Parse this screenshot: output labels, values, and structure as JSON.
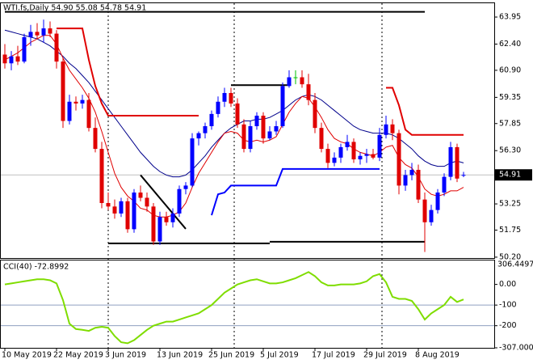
{
  "chart_data": [
    {
      "type": "candlestick",
      "title": "WTI.fs,Daily 54.90 55.08 54.78 54.91",
      "categories": [
        "10 May 2019",
        null,
        null,
        null,
        null,
        null,
        null,
        null,
        "22 May 2019",
        null,
        null,
        null,
        null,
        null,
        null,
        null,
        "3 Jun 2019",
        null,
        null,
        null,
        null,
        null,
        null,
        null,
        "13 Jun 2019",
        null,
        null,
        null,
        null,
        null,
        null,
        null,
        "25 Jun 2019",
        null,
        null,
        null,
        null,
        null,
        null,
        null,
        "5 Jul 2019",
        null,
        null,
        null,
        null,
        null,
        null,
        null,
        "17 Jul 2019",
        null,
        null,
        null,
        null,
        null,
        null,
        null,
        "29 Jul 2019",
        null,
        null,
        null,
        null,
        null,
        null,
        null,
        "8 Aug 2019",
        null,
        null,
        null,
        null,
        null,
        null,
        null
      ],
      "open": [
        61.8,
        61.3,
        61.7,
        61.4,
        62.8,
        63.1,
        62.9,
        63.3,
        63.0,
        61.4,
        58.0,
        59.1,
        59.0,
        59.2,
        57.6,
        56.4,
        53.3,
        53.1,
        52.7,
        53.4,
        51.8,
        53.9,
        53.6,
        53.1,
        51.1,
        52.5,
        52.2,
        52.7,
        54.1,
        54.3,
        57.0,
        57.3,
        57.7,
        58.4,
        59.1,
        59.6,
        59.0,
        57.8,
        56.4,
        57.7,
        58.3,
        57.0,
        57.4,
        57.7,
        60.0,
        60.5,
        60.5,
        60.1,
        59.2,
        57.6,
        56.4,
        55.6,
        55.9,
        56.5,
        56.8,
        55.8,
        56.0,
        56.1,
        55.9,
        57.2,
        57.8,
        57.3,
        54.3,
        54.9,
        55.2,
        53.5,
        52.2,
        52.9,
        53.9,
        54.8,
        56.5,
        54.9
      ],
      "high": [
        62.4,
        62.0,
        62.3,
        63.0,
        63.5,
        63.6,
        63.8,
        63.7,
        63.2,
        61.6,
        59.5,
        59.4,
        59.5,
        59.6,
        58.2,
        56.8,
        53.9,
        53.5,
        53.6,
        53.6,
        54.1,
        54.3,
        53.9,
        53.3,
        52.8,
        52.8,
        53.0,
        54.3,
        54.5,
        57.3,
        57.4,
        57.9,
        58.6,
        59.4,
        59.9,
        59.9,
        59.3,
        58.1,
        58.0,
        58.5,
        58.5,
        57.7,
        58.0,
        60.2,
        60.9,
        60.9,
        60.9,
        60.7,
        59.6,
        57.9,
        56.7,
        56.2,
        56.7,
        57.2,
        57.0,
        56.2,
        56.4,
        56.4,
        57.6,
        58.3,
        58.1,
        57.5,
        55.2,
        55.6,
        55.5,
        53.9,
        53.2,
        54.1,
        55.0,
        56.8,
        56.7,
        55.08
      ],
      "low": [
        61.0,
        60.9,
        61.2,
        61.3,
        62.3,
        62.7,
        62.5,
        62.8,
        61.0,
        57.6,
        57.8,
        58.6,
        58.7,
        57.4,
        56.2,
        53.0,
        52.9,
        52.4,
        52.5,
        51.6,
        51.6,
        53.4,
        52.8,
        50.9,
        50.9,
        52.0,
        51.9,
        52.5,
        53.8,
        54.2,
        56.6,
        57.0,
        57.5,
        58.2,
        58.8,
        58.8,
        57.6,
        56.2,
        56.2,
        57.5,
        56.7,
        56.9,
        57.2,
        57.6,
        59.9,
        60.1,
        59.9,
        58.9,
        57.3,
        56.2,
        55.3,
        55.4,
        55.6,
        56.3,
        55.6,
        55.5,
        55.6,
        55.8,
        55.7,
        57.0,
        56.9,
        53.8,
        54.0,
        54.6,
        53.3,
        50.5,
        52.0,
        52.7,
        53.7,
        54.6,
        54.5,
        54.78
      ],
      "close": [
        61.3,
        61.7,
        61.4,
        62.8,
        63.1,
        62.9,
        63.3,
        63.0,
        61.4,
        58.0,
        59.1,
        59.0,
        59.2,
        57.6,
        56.4,
        53.3,
        53.1,
        52.7,
        53.4,
        51.8,
        53.9,
        53.6,
        53.1,
        51.1,
        52.5,
        52.2,
        52.7,
        54.1,
        54.3,
        57.0,
        57.3,
        57.7,
        58.4,
        59.1,
        59.6,
        59.0,
        57.8,
        56.4,
        57.7,
        58.3,
        57.0,
        57.4,
        57.7,
        60.0,
        60.5,
        60.5,
        60.1,
        59.2,
        57.6,
        56.4,
        55.6,
        55.9,
        56.5,
        56.8,
        55.8,
        56.0,
        56.1,
        55.9,
        57.2,
        57.8,
        57.3,
        54.3,
        54.9,
        55.2,
        53.5,
        52.2,
        52.9,
        53.9,
        54.8,
        56.5,
        54.7,
        54.91
      ],
      "up_color": "#0000ff",
      "down_color": "#e00000",
      "doji_color": "#00c000",
      "lines": [
        {
          "color": "#00008b",
          "values": [
            63.2,
            63.1,
            63.0,
            62.9,
            62.8,
            62.7,
            62.5,
            62.3,
            62.0,
            61.7,
            61.3,
            61.0,
            60.6,
            60.2,
            59.7,
            59.2,
            58.7,
            58.2,
            57.7,
            57.2,
            56.7,
            56.2,
            55.8,
            55.4,
            55.1,
            54.9,
            54.8,
            54.8,
            54.9,
            55.2,
            55.6,
            56.0,
            56.5,
            56.9,
            57.3,
            57.6,
            57.8,
            58.0,
            58.0,
            58.1,
            58.1,
            58.2,
            58.4,
            58.6,
            58.9,
            59.2,
            59.4,
            59.5,
            59.4,
            59.2,
            58.9,
            58.6,
            58.3,
            58.0,
            57.7,
            57.5,
            57.4,
            57.3,
            57.3,
            57.3,
            57.2,
            57.0,
            56.7,
            56.4,
            56.0,
            55.7,
            55.5,
            55.4,
            55.4,
            55.6,
            55.7,
            55.6
          ]
        },
        {
          "color": "#e00000",
          "values": [
            61.5,
            61.7,
            61.9,
            62.2,
            62.5,
            62.7,
            62.9,
            62.9,
            62.4,
            61.6,
            60.9,
            60.4,
            59.9,
            59.3,
            58.5,
            57.4,
            56.2,
            55.0,
            54.2,
            53.7,
            53.4,
            53.0,
            52.9,
            52.6,
            52.5,
            52.5,
            52.6,
            52.8,
            53.3,
            54.2,
            55.0,
            55.6,
            56.2,
            56.8,
            57.3,
            57.4,
            57.3,
            56.9,
            56.8,
            56.9,
            56.8,
            56.9,
            57.1,
            57.8,
            58.5,
            59.0,
            59.4,
            59.3,
            58.8,
            58.2,
            57.5,
            57.0,
            56.8,
            56.7,
            56.4,
            56.2,
            56.1,
            56.0,
            56.2,
            56.5,
            56.6,
            55.9,
            55.5,
            55.3,
            54.8,
            54.1,
            53.8,
            53.7,
            53.8,
            54.0,
            54.0,
            54.2
          ]
        },
        {
          "color": "#e00000",
          "width": 2,
          "values": [
            null,
            null,
            null,
            null,
            null,
            null,
            null,
            null,
            63.3,
            63.3,
            63.3,
            63.3,
            63.3,
            61.5,
            60.0,
            59.0,
            58.3,
            58.3,
            58.3,
            58.3,
            58.3,
            58.3,
            58.3,
            58.3,
            58.3,
            58.3,
            58.3,
            58.3,
            58.3,
            58.3,
            58.3,
            null,
            null,
            null,
            null,
            null,
            null,
            null,
            null,
            null,
            null,
            null,
            null,
            null,
            null,
            null,
            null,
            null,
            null,
            null,
            null,
            null,
            null,
            null,
            null,
            null,
            null,
            null,
            null,
            59.9,
            59.9,
            58.9,
            57.5,
            57.2,
            57.2,
            57.2,
            57.2,
            57.2,
            57.2,
            57.2,
            57.2,
            57.2
          ]
        },
        {
          "color": "#0000ff",
          "width": 2,
          "values": [
            null,
            null,
            null,
            null,
            null,
            null,
            null,
            null,
            null,
            null,
            null,
            null,
            null,
            null,
            null,
            null,
            null,
            null,
            null,
            null,
            null,
            null,
            null,
            null,
            null,
            null,
            null,
            null,
            null,
            null,
            null,
            null,
            52.6,
            53.8,
            53.9,
            54.3,
            54.3,
            54.3,
            54.3,
            54.3,
            54.3,
            54.3,
            54.3,
            55.25,
            55.25,
            55.25,
            55.25,
            55.25,
            55.25,
            55.25,
            55.25,
            55.25,
            55.25,
            55.25,
            55.25,
            55.25,
            55.25,
            55.25,
            55.25,
            null,
            null,
            null,
            null,
            null,
            null,
            null,
            null,
            null,
            null,
            null,
            null,
            null
          ]
        }
      ],
      "trendlines": [
        {
          "x": [
            0,
            65
          ],
          "y": [
            64.25,
            64.25
          ]
        },
        {
          "x": [
            35,
            44
          ],
          "y": [
            60.05,
            60.05
          ]
        },
        {
          "x": [
            21,
            28
          ],
          "y": [
            54.9,
            51.82
          ]
        },
        {
          "x": [
            16,
            41
          ],
          "y": [
            50.99,
            50.99
          ]
        },
        {
          "x": [
            41,
            65
          ],
          "y": [
            51.08,
            51.08
          ]
        }
      ],
      "price_marker": 54.91,
      "ylim": [
        50.15,
        64.74
      ],
      "yticks": [
        63.95,
        {
          "value": 62.4,
          "label": "62.40"
        },
        {
          "value": 60.9,
          "label": "60.90"
        },
        59.35,
        57.85,
        {
          "value": 56.3,
          "label": "56.30"
        },
        53.25,
        51.75,
        {
          "value": 50.2,
          "label": "50.20"
        }
      ]
    },
    {
      "type": "line",
      "title": "CCI(40) -72.8992",
      "max_label": "306.4497",
      "color": "#7fdd00",
      "values": [
        0,
        5,
        10,
        15,
        20,
        25,
        25,
        20,
        5,
        -76,
        -190,
        -216,
        -220,
        -225,
        -210,
        -205,
        -210,
        -250,
        -280,
        -285,
        -270,
        -245,
        -220,
        -200,
        -190,
        -180,
        -180,
        -170,
        -160,
        -150,
        -140,
        -120,
        -100,
        -70,
        -40,
        -20,
        0,
        10,
        20,
        25,
        15,
        5,
        5,
        10,
        20,
        30,
        45,
        60,
        40,
        10,
        -5,
        -5,
        0,
        0,
        0,
        5,
        15,
        40,
        50,
        10,
        -60,
        -70,
        -70,
        -80,
        -120,
        -170,
        -140,
        -120,
        -100,
        -60,
        -85,
        -72.8992
      ],
      "levels": [
        -100,
        -200
      ],
      "level_color": "#8fa0c0",
      "ylim": [
        -307,
        116
      ],
      "yticks": [
        {
          "value": 0,
          "label": "0.00"
        },
        -100,
        -200,
        {
          "value": -307,
          "label": "-307.000"
        }
      ]
    }
  ]
}
